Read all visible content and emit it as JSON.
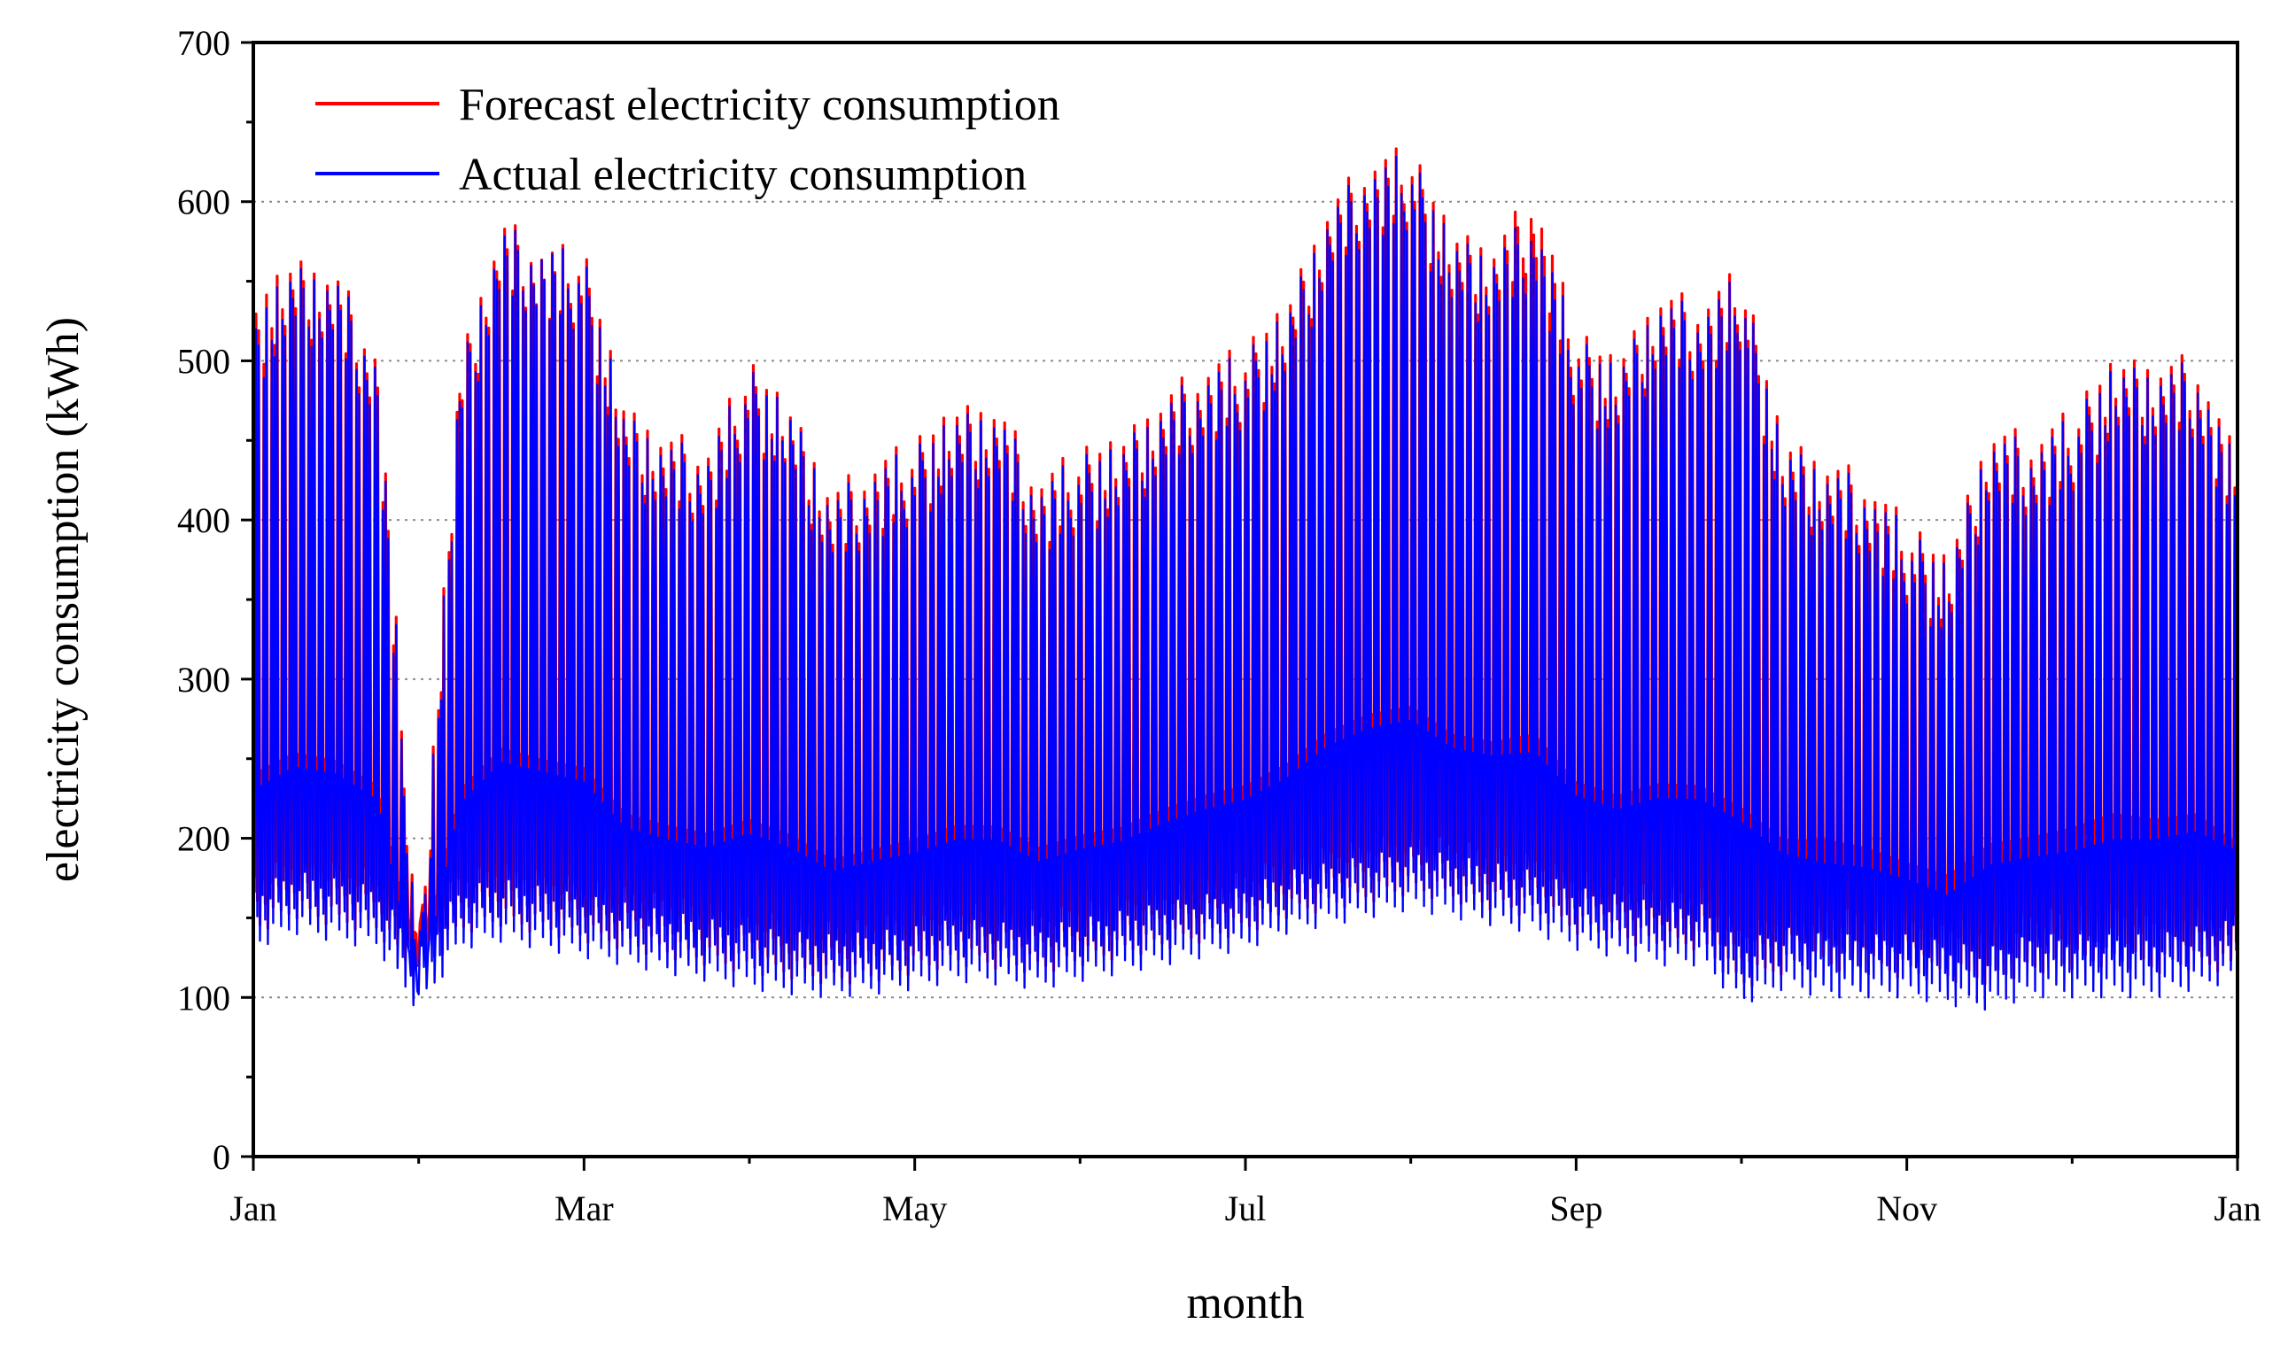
{
  "chart_data": {
    "type": "line",
    "title": "",
    "xlabel": "month",
    "ylabel": "electricity consumption (kWh)",
    "ylim": [
      0,
      700
    ],
    "yticks": [
      0,
      100,
      200,
      300,
      400,
      500,
      600,
      700
    ],
    "xlim": [
      0,
      12
    ],
    "xtick_positions": [
      0,
      2,
      4,
      6,
      8,
      10,
      12
    ],
    "xtick_labels": [
      "Jan",
      "Mar",
      "May",
      "Jul",
      "Sep",
      "Nov",
      "Jan"
    ],
    "xminor_positions": [
      1,
      3,
      5,
      7,
      9,
      11
    ],
    "grid": "horizontal dotted",
    "legend_position": "top-left",
    "series": [
      {
        "name": "Forecast electricity consumption",
        "color": "#ff0000",
        "x": [
          0.0,
          0.25,
          0.5,
          0.75,
          1.0,
          1.25,
          1.5,
          1.75,
          2.0,
          2.25,
          2.5,
          2.75,
          3.0,
          3.25,
          3.5,
          3.75,
          4.0,
          4.25,
          4.5,
          4.75,
          5.0,
          5.25,
          5.5,
          5.75,
          6.0,
          6.25,
          6.5,
          6.75,
          7.0,
          7.25,
          7.5,
          7.75,
          8.0,
          8.25,
          8.5,
          8.75,
          9.0,
          9.25,
          9.5,
          9.75,
          10.0,
          10.25,
          10.5,
          10.75,
          11.0,
          11.25,
          11.5,
          11.75,
          12.0
        ],
        "peak": [
          540,
          563,
          558,
          510,
          135,
          500,
          590,
          575,
          570,
          470,
          455,
          450,
          500,
          470,
          420,
          440,
          450,
          470,
          475,
          430,
          445,
          450,
          480,
          500,
          510,
          535,
          600,
          630,
          635,
          580,
          575,
          610,
          520,
          500,
          545,
          540,
          560,
          450,
          440,
          430,
          400,
          375,
          460,
          455,
          470,
          500,
          500,
          505,
          440
        ],
        "base": [
          140,
          150,
          145,
          140,
          110,
          140,
          145,
          140,
          135,
          130,
          125,
          120,
          115,
          112,
          108,
          110,
          115,
          120,
          118,
          115,
          120,
          125,
          130,
          135,
          140,
          150,
          155,
          160,
          165,
          160,
          155,
          150,
          140,
          135,
          130,
          130,
          105,
          115,
          118,
          115,
          112,
          110,
          108,
          115,
          118,
          120,
          115,
          118,
          115
        ]
      },
      {
        "name": "Actual electricity consumption",
        "color": "#0000ff",
        "x": [
          0.0,
          0.25,
          0.5,
          0.75,
          1.0,
          1.25,
          1.5,
          1.75,
          2.0,
          2.25,
          2.5,
          2.75,
          3.0,
          3.25,
          3.5,
          3.75,
          4.0,
          4.25,
          4.5,
          4.75,
          5.0,
          5.25,
          5.5,
          5.75,
          6.0,
          6.25,
          6.5,
          6.75,
          7.0,
          7.25,
          7.5,
          7.75,
          8.0,
          8.25,
          8.5,
          8.75,
          9.0,
          9.25,
          9.5,
          9.75,
          10.0,
          10.25,
          10.5,
          10.75,
          11.0,
          11.25,
          11.5,
          11.75,
          12.0
        ],
        "peak": [
          530,
          558,
          555,
          505,
          130,
          495,
          585,
          575,
          565,
          465,
          450,
          445,
          495,
          468,
          415,
          435,
          445,
          465,
          470,
          425,
          440,
          445,
          475,
          495,
          505,
          530,
          595,
          625,
          630,
          575,
          570,
          595,
          515,
          495,
          540,
          535,
          555,
          445,
          435,
          425,
          395,
          370,
          455,
          450,
          465,
          495,
          495,
          500,
          435
        ],
        "base": [
          130,
          140,
          135,
          130,
          90,
          130,
          135,
          130,
          125,
          120,
          115,
          110,
          105,
          102,
          100,
          102,
          105,
          110,
          108,
          105,
          110,
          115,
          120,
          125,
          130,
          140,
          145,
          150,
          155,
          150,
          145,
          140,
          130,
          125,
          120,
          120,
          95,
          105,
          100,
          100,
          100,
          95,
          92,
          100,
          100,
          100,
          100,
          105,
          110
        ]
      }
    ]
  }
}
